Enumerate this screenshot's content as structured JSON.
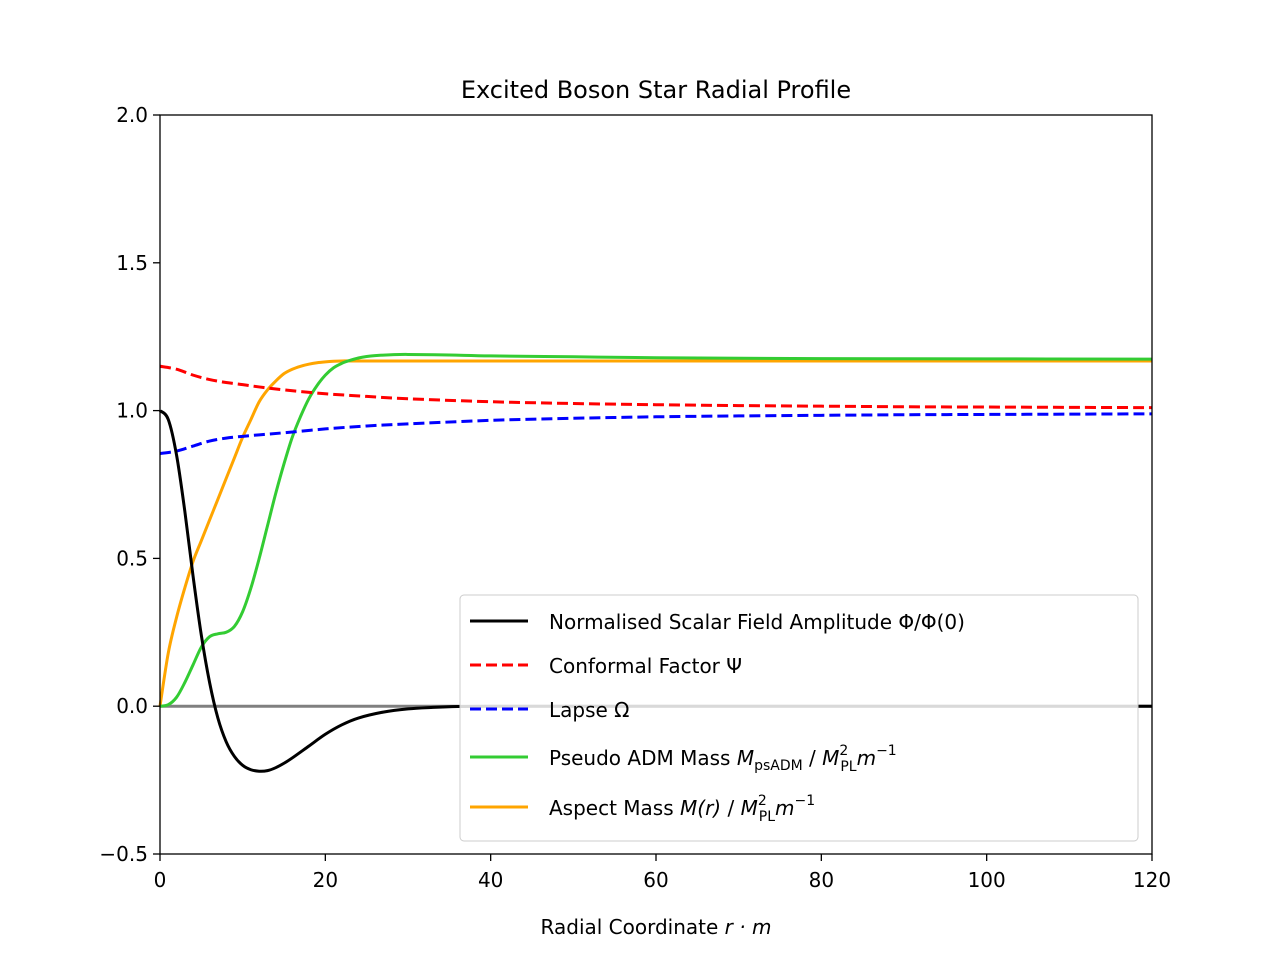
{
  "chart_data": {
    "type": "line",
    "title": "Excited Boson Star Radial Profile",
    "xlabel_text": "Radial Coordinate ",
    "xlabel_math": "r · m",
    "xlim": [
      0,
      120
    ],
    "ylim": [
      -0.5,
      2.0
    ],
    "xticks": [
      0,
      20,
      40,
      60,
      80,
      100,
      120
    ],
    "xtick_labels": [
      "0",
      "20",
      "40",
      "60",
      "80",
      "100",
      "120"
    ],
    "yticks": [
      -0.5,
      0.0,
      0.5,
      1.0,
      1.5,
      2.0
    ],
    "ytick_labels": [
      "−0.5",
      "0.0",
      "0.5",
      "1.0",
      "1.5",
      "2.0"
    ],
    "grid": false,
    "legend_position": "lower-right",
    "zero_line": {
      "y": 0,
      "color": "#808080"
    },
    "series": [
      {
        "key": "scalar",
        "name": "Normalised Scalar Field Amplitude Φ/Φ(0)",
        "color": "#000000",
        "dash": "solid",
        "x": [
          0,
          1,
          2,
          3,
          4,
          5,
          6,
          7,
          8,
          9,
          10,
          11,
          12,
          13,
          14,
          15,
          16,
          18,
          20,
          22,
          24,
          27,
          30,
          33,
          36,
          40,
          50,
          60,
          80,
          100,
          120
        ],
        "y": [
          1.0,
          0.97,
          0.85,
          0.66,
          0.44,
          0.24,
          0.08,
          -0.04,
          -0.12,
          -0.17,
          -0.2,
          -0.215,
          -0.22,
          -0.218,
          -0.208,
          -0.193,
          -0.175,
          -0.135,
          -0.095,
          -0.063,
          -0.04,
          -0.02,
          -0.009,
          -0.004,
          -0.001,
          0.0,
          0.0,
          0.0,
          0.0,
          0.0,
          0.0
        ]
      },
      {
        "key": "conformal",
        "name": "Conformal Factor Ψ",
        "color": "#ff0000",
        "dash": "dashed",
        "x": [
          0,
          2,
          4,
          6,
          8,
          10,
          12,
          15,
          20,
          25,
          30,
          40,
          50,
          60,
          70,
          80,
          90,
          100,
          110,
          120
        ],
        "y": [
          1.15,
          1.14,
          1.12,
          1.105,
          1.095,
          1.088,
          1.08,
          1.07,
          1.057,
          1.048,
          1.04,
          1.03,
          1.024,
          1.02,
          1.017,
          1.015,
          1.013,
          1.012,
          1.011,
          1.01
        ]
      },
      {
        "key": "lapse",
        "name": "Lapse Ω",
        "color": "#0000ff",
        "dash": "dashed",
        "x": [
          0,
          2,
          4,
          6,
          8,
          10,
          12,
          15,
          20,
          25,
          30,
          40,
          50,
          60,
          70,
          80,
          90,
          100,
          110,
          120
        ],
        "y": [
          0.855,
          0.863,
          0.88,
          0.897,
          0.907,
          0.913,
          0.918,
          0.925,
          0.938,
          0.948,
          0.955,
          0.967,
          0.974,
          0.979,
          0.982,
          0.984,
          0.986,
          0.987,
          0.988,
          0.989
        ]
      },
      {
        "key": "psadm",
        "name": "Pseudo ADM Mass",
        "color": "#33cc33",
        "dash": "solid",
        "x": [
          0,
          1,
          2,
          3,
          4,
          5,
          6,
          7,
          8,
          9,
          10,
          11,
          12,
          13,
          14,
          15,
          16,
          17,
          18,
          19,
          20,
          21,
          22,
          23,
          24,
          25,
          26,
          28,
          30,
          35,
          40,
          50,
          60,
          80,
          100,
          120
        ],
        "y": [
          0.0,
          0.005,
          0.03,
          0.08,
          0.14,
          0.2,
          0.235,
          0.245,
          0.25,
          0.27,
          0.32,
          0.4,
          0.5,
          0.61,
          0.72,
          0.82,
          0.91,
          0.98,
          1.04,
          1.085,
          1.12,
          1.145,
          1.16,
          1.17,
          1.178,
          1.183,
          1.186,
          1.189,
          1.19,
          1.188,
          1.185,
          1.182,
          1.179,
          1.176,
          1.175,
          1.174
        ]
      },
      {
        "key": "aspect",
        "name": "Aspect Mass",
        "color": "#ffa500",
        "dash": "solid",
        "x": [
          0,
          1,
          2,
          3,
          4,
          5,
          6,
          7,
          8,
          9,
          10,
          11,
          12,
          13,
          14,
          15,
          16,
          17,
          18,
          19,
          20,
          21,
          22,
          23,
          24,
          26,
          30,
          40,
          60,
          80,
          100,
          120
        ],
        "y": [
          0.0,
          0.18,
          0.3,
          0.4,
          0.49,
          0.56,
          0.63,
          0.7,
          0.77,
          0.84,
          0.91,
          0.97,
          1.03,
          1.07,
          1.1,
          1.125,
          1.14,
          1.15,
          1.157,
          1.162,
          1.165,
          1.167,
          1.168,
          1.168,
          1.168,
          1.168,
          1.168,
          1.168,
          1.168,
          1.168,
          1.168,
          1.168
        ]
      }
    ],
    "legend": [
      {
        "key": "scalar",
        "text": "Normalised Scalar Field Amplitude Φ/Φ(0)"
      },
      {
        "key": "conformal",
        "text": "Conformal Factor Ψ"
      },
      {
        "key": "lapse",
        "text": "Lapse Ω"
      },
      {
        "key": "psadm",
        "prefix": "Pseudo ADM Mass ",
        "m1": "M",
        "sub1": "psADM",
        "sep": " / ",
        "m2": "M",
        "sup2": "2",
        "sub2": "PL",
        "m3": "m",
        "sup3": "−1"
      },
      {
        "key": "aspect",
        "prefix": "Aspect Mass ",
        "m1": "M(r)",
        "sep": " / ",
        "m2": "M",
        "sup2": "2",
        "sub2": "PL",
        "m3": "m",
        "sup3": "−1"
      }
    ]
  }
}
